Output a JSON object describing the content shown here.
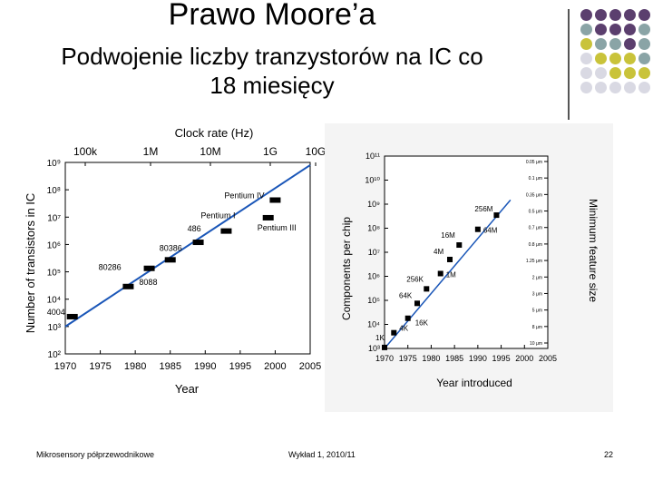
{
  "slide": {
    "title": "Prawo Moore’a",
    "subtitle_line1": "Podwojenie liczby tranzystorów na IC co",
    "subtitle_line2": "18 miesięcy",
    "footer_left": "Mikrosensory półprzewodnikowe",
    "footer_center": "Wykład 1, 2010/11",
    "page_number": "22"
  },
  "decoration": {
    "dot_colors": [
      "#5b3f6e",
      "#8aa4a6",
      "#c9c33a",
      "#d9d9e3"
    ]
  },
  "chart_data": [
    {
      "type": "scatter",
      "title": "Clock rate (Hz)",
      "xlabel": "Year",
      "ylabel": "Number of transistors in IC",
      "xlim": [
        1970,
        2005
      ],
      "ylim_log10": [
        2,
        9
      ],
      "xticks": [
        "1970",
        "1975",
        "1980",
        "1985",
        "1990",
        "1995",
        "2000",
        "2005"
      ],
      "yticks": [
        "10²",
        "10³",
        "10⁴",
        "10⁵",
        "10⁶",
        "10⁷",
        "10⁸",
        "10⁹"
      ],
      "top_axis_labels": [
        "100k",
        "1M",
        "10M",
        "1G",
        "10G"
      ],
      "points": [
        {
          "label": "4004",
          "year": 1971,
          "transistors": 2300
        },
        {
          "label": "8088",
          "year": 1979,
          "transistors": 29000
        },
        {
          "label": "80286",
          "year": 1982,
          "transistors": 134000
        },
        {
          "label": "80386",
          "year": 1985,
          "transistors": 275000
        },
        {
          "label": "486",
          "year": 1989,
          "transistors": 1200000
        },
        {
          "label": "Pentium I",
          "year": 1993,
          "transistors": 3100000
        },
        {
          "label": "Pentium III",
          "year": 1999,
          "transistors": 9500000
        },
        {
          "label": "Pentium IV",
          "year": 2000,
          "transistors": 42000000
        }
      ],
      "trend": [
        [
          1970,
          1000
        ],
        [
          2005,
          800000000
        ]
      ]
    },
    {
      "type": "scatter",
      "xlabel": "Year introduced",
      "ylabel": "Components per chip",
      "y2label": "Minimum feature size",
      "xlim": [
        1970,
        2005
      ],
      "ylim_log10": [
        3,
        11
      ],
      "xticks": [
        "1970",
        "1975",
        "1980",
        "1985",
        "1990",
        "1995",
        "2000",
        "2005"
      ],
      "yticks": [
        "10³",
        "10⁴",
        "10⁵",
        "10⁶",
        "10⁷",
        "10⁸",
        "10⁹",
        "10¹⁰",
        "10¹¹"
      ],
      "feature_sizes": [
        "0.05 μm",
        "0.1 μm",
        "0.35 μm",
        "0.5 μm",
        "0.7 μm",
        "0.8 μm",
        "1.25 μm",
        "2 μm",
        "3 μm",
        "5 μm",
        "8 μm",
        "10 μm"
      ],
      "points": [
        {
          "label": "1K",
          "year": 1970,
          "components": 1100
        },
        {
          "label": "4K",
          "year": 1972,
          "components": 4500
        },
        {
          "label": "16K",
          "year": 1975,
          "components": 18000
        },
        {
          "label": "64K",
          "year": 1977,
          "components": 75000
        },
        {
          "label": "256K",
          "year": 1979,
          "components": 300000
        },
        {
          "label": "1M",
          "year": 1982,
          "components": 1300000
        },
        {
          "label": "4M",
          "year": 1984,
          "components": 5000000
        },
        {
          "label": "16M",
          "year": 1986,
          "components": 20000000
        },
        {
          "label": "64M",
          "year": 1990,
          "components": 90000000
        },
        {
          "label": "256M",
          "year": 1994,
          "components": 350000000
        }
      ],
      "trend": [
        [
          1970,
          1000
        ],
        [
          1997,
          1500000000
        ]
      ]
    }
  ]
}
